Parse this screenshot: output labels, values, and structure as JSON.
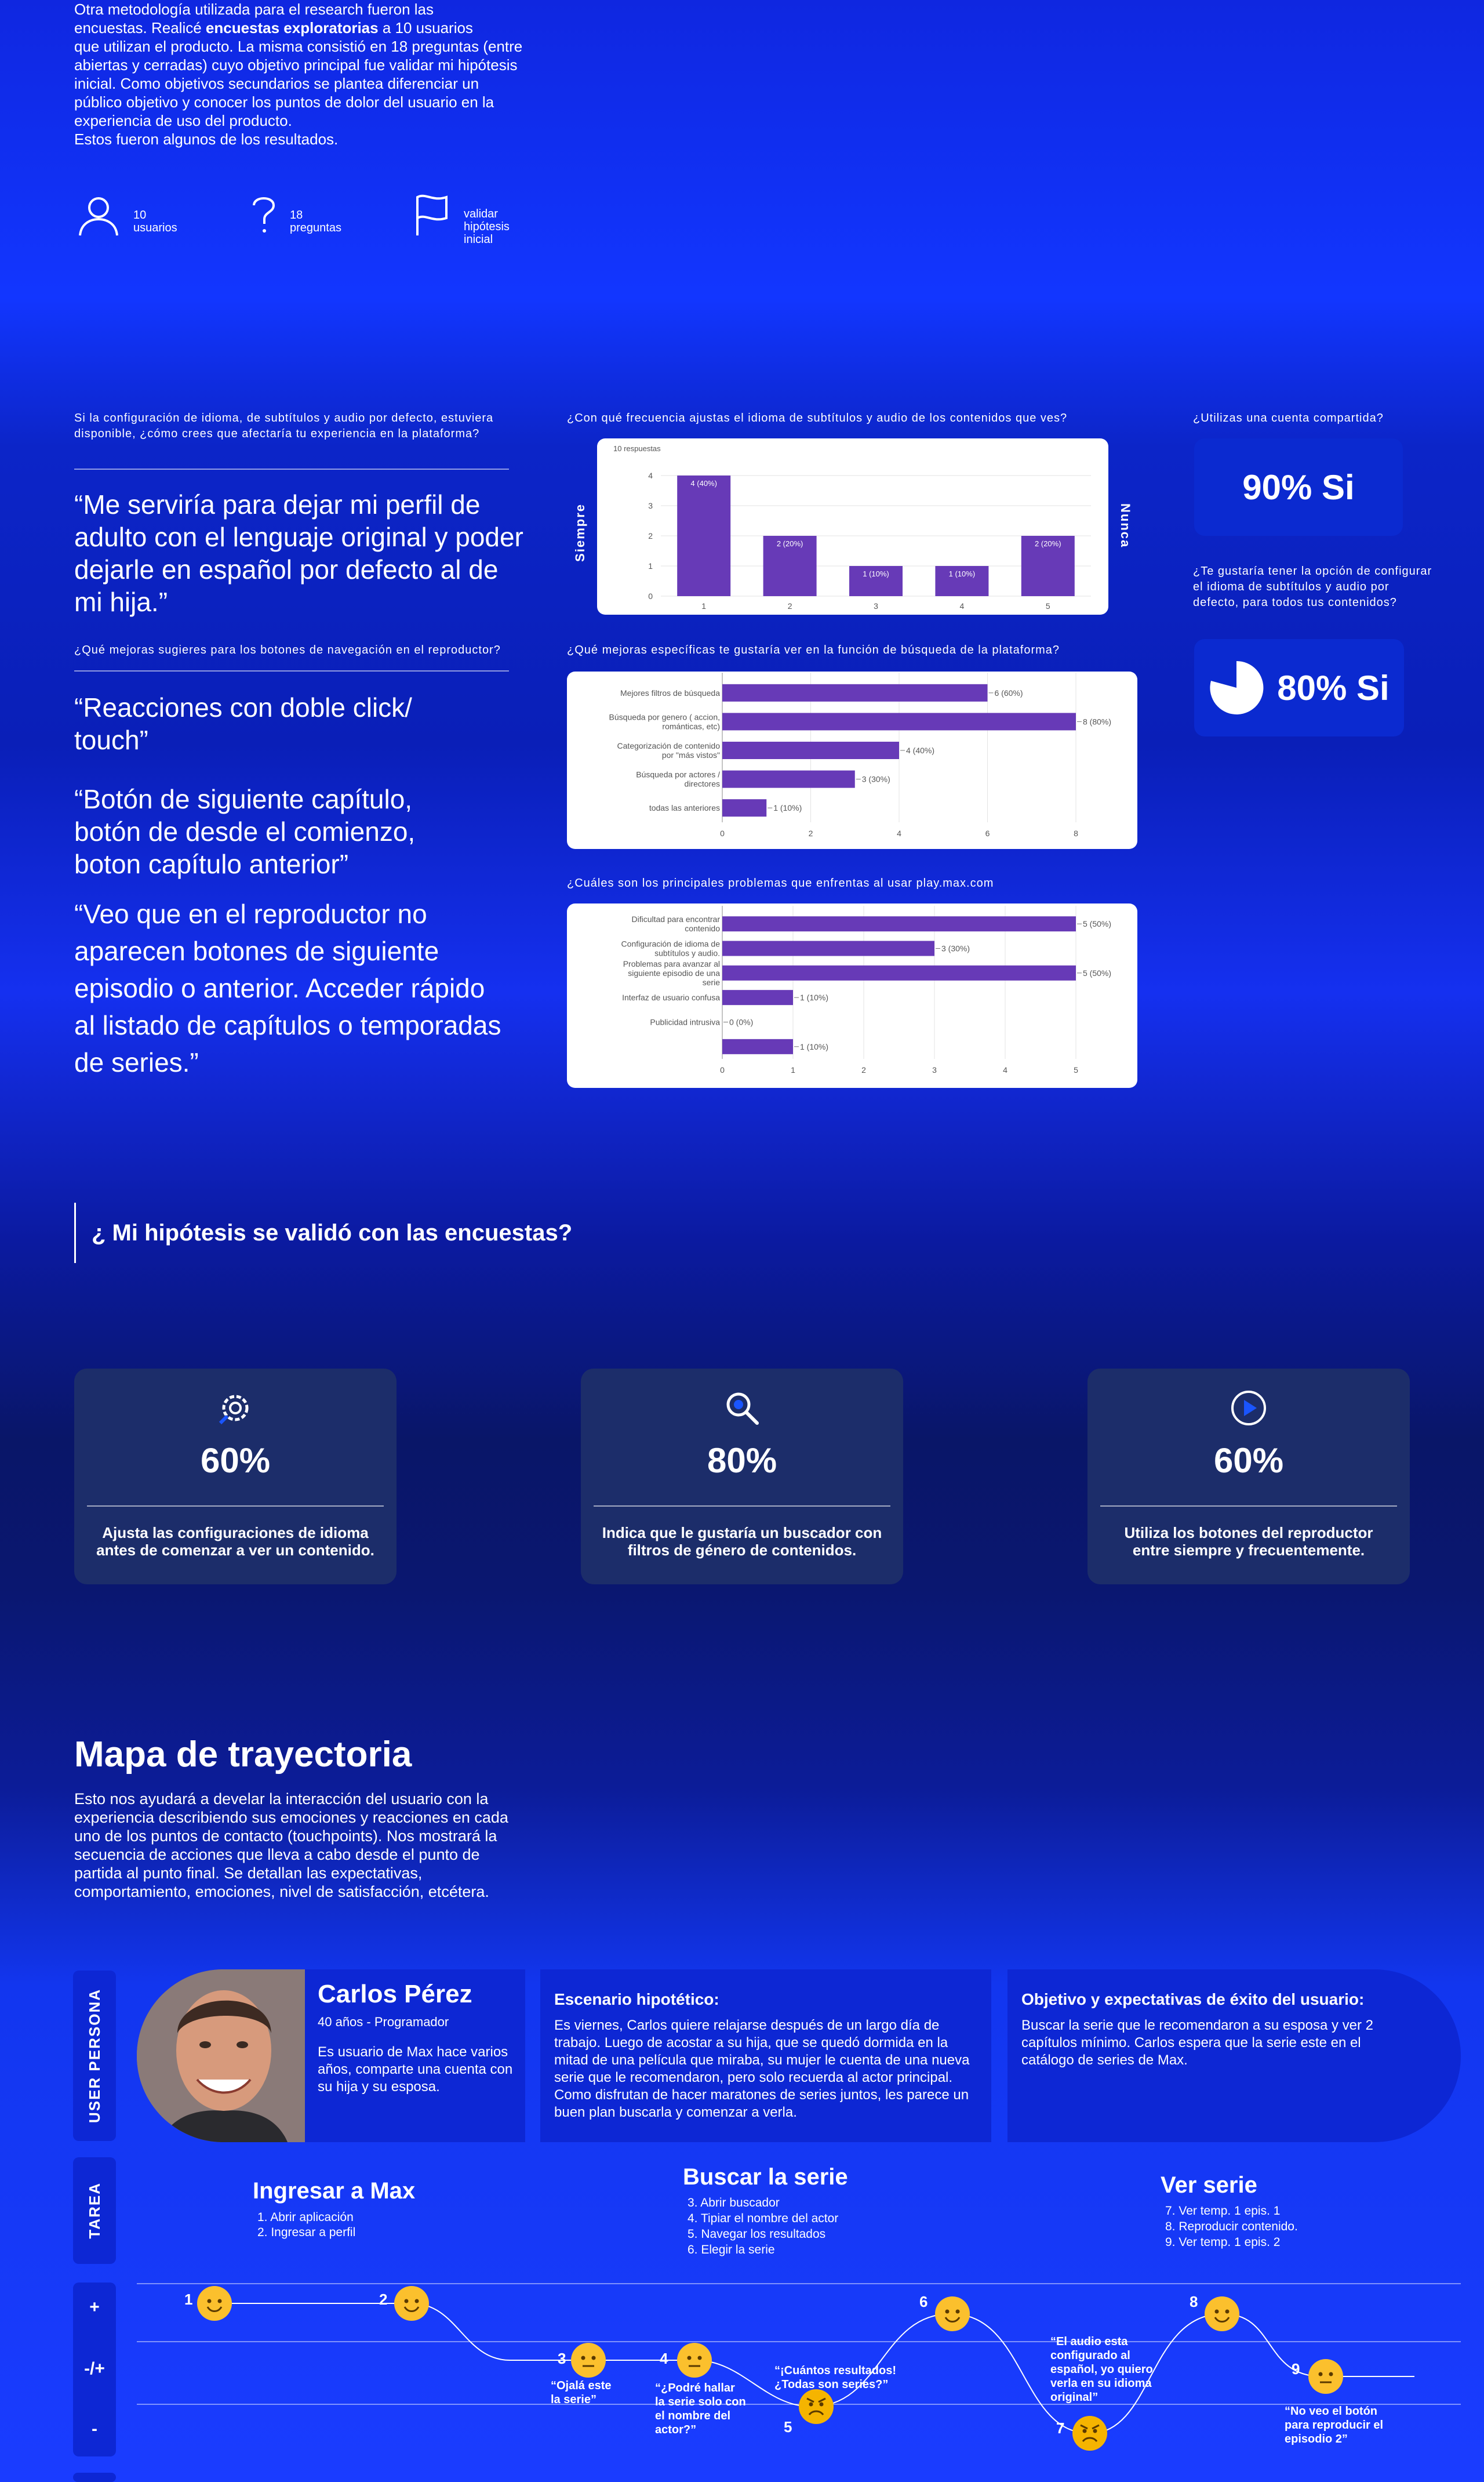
{
  "intro": {
    "line1": "Otra metodología utilizada para el research fueron las",
    "line2_a": "encuestas. Realicé ",
    "line2_b": "encuestas exploratorias",
    "line2_c": " a 10 usuarios",
    "rest": "que utilizan el producto.  La misma consistió en 18 preguntas (entre abiertas y cerradas) cuyo objetivo principal fue validar mi hipótesis inicial. Como objetivos secundarios se plantea diferenciar un público objetivo y conocer los puntos de dolor del usuario en la experiencia de uso del producto.",
    "last": "Estos fueron algunos de los resultados."
  },
  "stats": [
    {
      "icon": "user-icon",
      "line1": "10",
      "line2": "usuarios"
    },
    {
      "icon": "question-icon",
      "line1": "18",
      "line2": "preguntas"
    },
    {
      "icon": "flag-icon",
      "line1": "validar",
      "line2": "hipótesis",
      "line3": "inicial"
    }
  ],
  "survey": {
    "q1": "Si la configuración de idioma, de subtítulos y audio por defecto, estuviera disponible, ¿cómo crees que afectaría tu experiencia en la plataforma?",
    "quote1": "“Me serviría para dejar mi perfil de adulto con el lenguaje original y poder dejarle en español por defecto al de mi hija.”",
    "q2": "¿Qué mejoras sugieres para los botones de navegación en el reproductor?",
    "quote2": "“Reacciones con doble click/ touch”",
    "quote3": "“Botón de siguiente capítulo, botón de desde el comienzo, boton capítulo anterior”",
    "quote4": "“Veo que en el reproductor no aparecen botones de siguiente episodio o anterior. Acceder rápido al listado de capítulos o temporadas de series.”",
    "q3": "¿Con qué frecuencia ajustas el idioma de subtítulos y audio de los contenidos que ves?",
    "q4": "¿Qué mejoras específicas te gustaría ver en la función de búsqueda de la plataforma?",
    "q5": "¿Cuáles son los principales problemas que enfrentas al usar play.max.com",
    "q6": "¿Utilizas una cuenta compartida?",
    "a6": "90% Si",
    "q7": "¿Te gustaría tener la opción de configurar el idioma de subtítulos y audio por defecto, para todos tus contenidos?",
    "a7": "80% Si"
  },
  "chart_data": [
    {
      "type": "bar",
      "subtitle": "10 respuestas",
      "categories": [
        "1",
        "2",
        "3",
        "4",
        "5"
      ],
      "values": [
        4,
        2,
        1,
        1,
        2
      ],
      "labels": [
        "4 (40%)",
        "2 (20%)",
        "1 (10%)",
        "1 (10%)",
        "2 (20%)"
      ],
      "ylim": [
        0,
        4
      ],
      "yticks": [
        "0",
        "1",
        "2",
        "3",
        "4"
      ],
      "left_label": "Siempre",
      "right_label": "Nunca",
      "color": "#673ab7"
    },
    {
      "type": "bar",
      "orientation": "horizontal",
      "categories": [
        "Mejores filtros de búsqueda",
        "Búsqueda por genero ( accion, románticas, etc)",
        "Categorización de contenido por \"más vistos\"",
        "Búsqueda por actores / directores",
        "todas las anteriores"
      ],
      "values": [
        6,
        8,
        4,
        3,
        1
      ],
      "labels": [
        "6 (60%)",
        "8 (80%)",
        "4 (40%)",
        "3 (30%)",
        "1 (10%)"
      ],
      "xlim": [
        0,
        8
      ],
      "xticks": [
        "0",
        "2",
        "4",
        "6",
        "8"
      ],
      "color": "#673ab7"
    },
    {
      "type": "bar",
      "orientation": "horizontal",
      "categories": [
        "Dificultad para encontrar contenido",
        "Configuración de idioma de subtítulos y audio.",
        "Problemas para avanzar al siguiente episodio de una serie",
        "Interfaz de usuario confusa",
        "Publicidad intrusiva",
        ""
      ],
      "values": [
        5,
        3,
        5,
        1,
        0,
        1
      ],
      "labels": [
        "5 (50%)",
        "3 (30%)",
        "5 (50%)",
        "1 (10%)",
        "0 (0%)",
        "1 (10%)"
      ],
      "xlim": [
        0,
        5
      ],
      "xticks": [
        "0",
        "1",
        "2",
        "3",
        "4",
        "5"
      ],
      "color": "#673ab7"
    }
  ],
  "hypothesis": {
    "title": "¿ Mi hipótesis se validó con las encuestas?",
    "cards": [
      {
        "icon": "settings-icon",
        "value": "60%",
        "desc": "Ajusta las configuraciones de idioma antes de comenzar a ver un contenido."
      },
      {
        "icon": "search-icon",
        "value": "80%",
        "desc": "Indica que le gustaría un buscador con filtros de género de contenidos."
      },
      {
        "icon": "play-icon",
        "value": "60%",
        "desc": "Utiliza los botones del reproductor entre siempre y frecuentemente."
      }
    ]
  },
  "journey": {
    "title": "Mapa de trayectoria",
    "desc": "Esto nos ayudará a develar la interacción del usuario con la experiencia describiendo sus emociones y reacciones en cada uno de los puntos de contacto (touchpoints). Nos mostrará la secuencia de acciones que lleva a cabo desde el punto de partida al punto final. Se detallan las expectativas, comportamiento, emociones, nivel de satisfacción, etcétera.",
    "persona_tab": "USER PERSONA",
    "task_tab": "TAREA",
    "persona": {
      "name": "Carlos Pérez",
      "meta": "40 años - Programador",
      "bio": "Es usuario de Max hace varios años, comparte una cuenta con su hija y su esposa."
    },
    "scenario": {
      "title": "Escenario hipotético:",
      "text": "Es viernes, Carlos quiere relajarse después de un largo día de trabajo. Luego de acostar a su hija, que se quedó dormida en la mitad de una película que miraba, su mujer le cuenta de una nueva serie que le recomendaron, pero solo recuerda al actor principal. Como disfrutan de hacer maratones de series juntos, les parece un buen plan buscarla y comenzar a verla."
    },
    "goal": {
      "title": "Objetivo y expectativas de éxito del usuario:",
      "text": "Buscar la serie que le recomendaron a su esposa y ver 2 capítulos mínimo. Carlos espera que la serie este en el catálogo de series de Max."
    },
    "tasks": [
      {
        "title": "Ingresar a Max",
        "steps": [
          "1. Abrir aplicación",
          "2. Ingresar a perfil"
        ]
      },
      {
        "title": "Buscar la serie",
        "steps": [
          "3. Abrir buscador",
          "4. Tipiar el nombre del actor",
          "5. Navegar los resultados",
          "6.  Elegir la serie"
        ]
      },
      {
        "title": "Ver serie",
        "steps": [
          "7. Ver temp. 1 epis. 1",
          "8. Reproducir contenido.",
          "9. Ver temp. 1 epis. 2"
        ]
      }
    ],
    "scale": [
      "+",
      "-/+",
      "-"
    ],
    "points": [
      {
        "n": "1",
        "mood": "happy",
        "quote": ""
      },
      {
        "n": "2",
        "mood": "happy",
        "quote": ""
      },
      {
        "n": "3",
        "mood": "neutral",
        "quote": "“Ojalá este la serie”"
      },
      {
        "n": "4",
        "mood": "neutral",
        "quote": "“¿Podré hallar la serie solo con el nombre del actor?”"
      },
      {
        "n": "5",
        "mood": "angry",
        "quote": "“¡Cuántos resultados! ¿Todas son series?”"
      },
      {
        "n": "6",
        "mood": "happy",
        "quote": ""
      },
      {
        "n": "7",
        "mood": "angry",
        "quote": "“El audio esta configurado al español, yo quiero verla en su idioma original”"
      },
      {
        "n": "8",
        "mood": "happy",
        "quote": ""
      },
      {
        "n": "9",
        "mood": "neutral",
        "quote": "“No veo el botón para reproducir el episodio 2”"
      }
    ]
  }
}
